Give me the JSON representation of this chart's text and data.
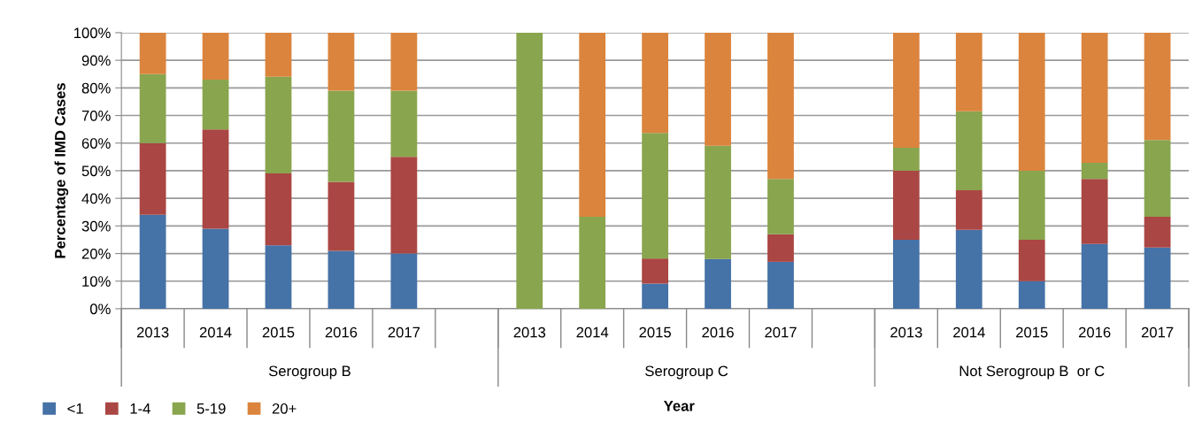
{
  "chart_data": {
    "type": "bar",
    "stacked": true,
    "xlabel": "Year",
    "ylabel": "Percentage of IMD Cases",
    "categories": [
      "2013",
      "2014",
      "2015",
      "2016",
      "2017",
      null,
      "2013",
      "2014",
      "2015",
      "2016",
      "2017",
      null,
      "2013",
      "2014",
      "2015",
      "2016",
      "2017"
    ],
    "annotations": [
      "Serogroup B",
      "Serogroup C",
      "Not Serogroup B  or C"
    ],
    "series": [
      {
        "name": "<1",
        "color": "#4572a7",
        "values": [
          34,
          29,
          23,
          21,
          20,
          null,
          0,
          0,
          9.1,
          18,
          17,
          null,
          25,
          28.6,
          10,
          23.5,
          22.2
        ]
      },
      {
        "name": "1-4",
        "color": "#aa4643",
        "values": [
          26,
          36,
          26,
          25,
          35,
          null,
          0,
          0,
          9.1,
          0,
          10,
          null,
          25,
          14.3,
          15,
          23.5,
          11.1
        ]
      },
      {
        "name": "5-19",
        "color": "#89a54e",
        "values": [
          25,
          18,
          35,
          33,
          24,
          null,
          100,
          33.3,
          45.5,
          41,
          20,
          null,
          8.3,
          28.6,
          25,
          5.9,
          27.8
        ]
      },
      {
        "name": "20+",
        "color": "#db843d",
        "values": [
          15,
          17,
          16,
          21,
          21,
          null,
          0,
          66.7,
          36.4,
          41,
          53,
          null,
          41.7,
          28.5,
          50,
          47.1,
          38.9
        ]
      }
    ],
    "ylim": [
      0,
      100
    ],
    "yticks": [
      {
        "value": 0,
        "label": "0%"
      },
      {
        "value": 10,
        "label": "10%"
      },
      {
        "value": 20,
        "label": "20%"
      },
      {
        "value": 30,
        "label": "30%"
      },
      {
        "value": 40,
        "label": "40%"
      },
      {
        "value": 50,
        "label": "50%"
      },
      {
        "value": 60,
        "label": "60%"
      },
      {
        "value": 70,
        "label": "70%"
      },
      {
        "value": 80,
        "label": "80%"
      },
      {
        "value": 90,
        "label": "90%"
      },
      {
        "value": 100,
        "label": "100%"
      }
    ],
    "grid": "y",
    "legend": "bottom left"
  }
}
